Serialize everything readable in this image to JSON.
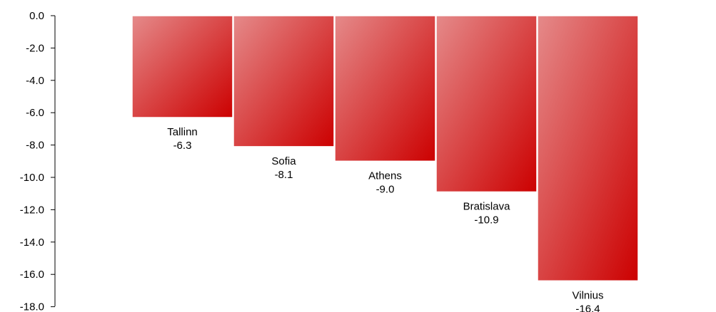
{
  "chart_data": {
    "type": "bar",
    "title": "",
    "xlabel": "",
    "ylabel": "",
    "categories": [
      "Tallinn",
      "Sofia",
      "Athens",
      "Bratislava",
      "Vilnius"
    ],
    "values": [
      -6.3,
      -8.1,
      -9.0,
      -10.9,
      -16.4
    ],
    "value_labels": [
      "-6.3",
      "-8.1",
      "-9.0",
      "-10.9",
      "-16.4"
    ],
    "ylim": [
      -18,
      0
    ],
    "yticks": [
      "0.0",
      "-2.0",
      "-4.0",
      "-6.0",
      "-8.0",
      "-10.0",
      "-12.0",
      "-14.0",
      "-16.0",
      "-18.0"
    ],
    "grid": false,
    "legend": "none",
    "colors": {
      "bar_light": "#e58a8a",
      "bar_dark": "#cc0000",
      "bar_edge": "#ffffff",
      "axis": "#000000"
    }
  }
}
